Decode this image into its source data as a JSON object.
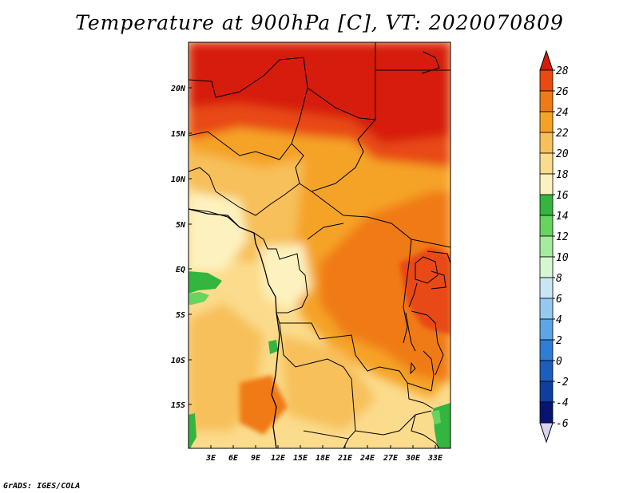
{
  "title": "Temperature at 900hPa [C], VT: 2020070809",
  "credit": "GrADS: IGES/COLA",
  "map": {
    "region": "Central Africa",
    "variable": "Temperature at 900hPa",
    "units": "C",
    "valid_time": "2020070809",
    "lat_labels": [
      "20N",
      "15N",
      "10N",
      "5N",
      "EQ",
      "5S",
      "10S",
      "15S"
    ],
    "lon_labels": [
      "3E",
      "6E",
      "9E",
      "12E",
      "15E",
      "18E",
      "21E",
      "24E",
      "27E",
      "30E",
      "33E"
    ]
  },
  "colorbar": {
    "labels": [
      "28",
      "26",
      "24",
      "22",
      "20",
      "18",
      "16",
      "14",
      "12",
      "10",
      "8",
      "6",
      "4",
      "2",
      "0",
      "-2",
      "-4",
      "-6"
    ],
    "colors": [
      "#d61c0b",
      "#e84a12",
      "#f07a18",
      "#f5a327",
      "#f7c05a",
      "#fbdb8c",
      "#fdf2bf",
      "#34b53f",
      "#68d35f",
      "#a6eba0",
      "#d7f6d3",
      "#c9e5f6",
      "#94caf0",
      "#5ea5e6",
      "#2e7dd6",
      "#1b5ec0",
      "#0d3ea0",
      "#081470",
      "#d7d4f2"
    ]
  }
}
